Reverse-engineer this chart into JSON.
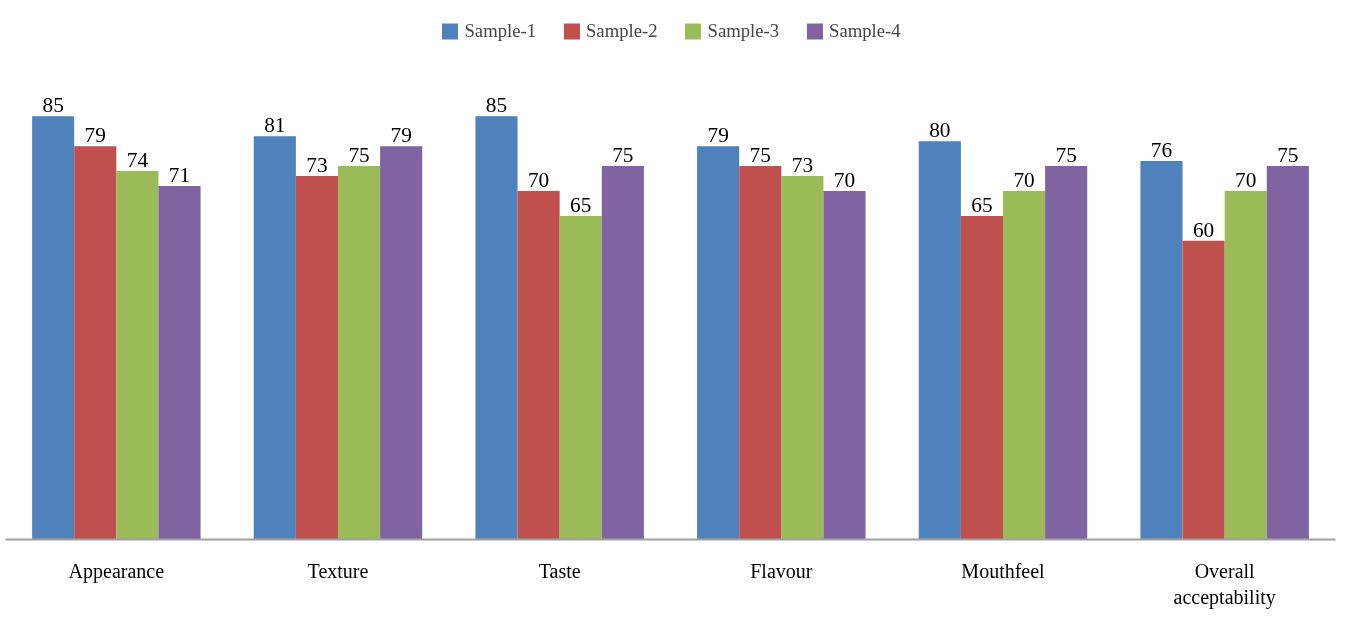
{
  "chart_data": {
    "type": "bar",
    "categories": [
      "Appearance",
      "Texture",
      "Taste",
      "Flavour",
      "Mouthfeel",
      "Overall acceptability"
    ],
    "series": [
      {
        "name": "Sample-1",
        "color": "#4f81bd",
        "values": [
          85,
          81,
          85,
          79,
          80,
          76
        ]
      },
      {
        "name": "Sample-2",
        "color": "#c0504d",
        "values": [
          79,
          73,
          70,
          75,
          65,
          60
        ]
      },
      {
        "name": "Sample-3",
        "color": "#9bbb59",
        "values": [
          74,
          75,
          65,
          73,
          70,
          70
        ]
      },
      {
        "name": "Sample-4",
        "color": "#8064a2",
        "values": [
          71,
          79,
          75,
          70,
          75,
          75
        ]
      }
    ],
    "data_labels": true,
    "legend": "top",
    "grid": false
  }
}
